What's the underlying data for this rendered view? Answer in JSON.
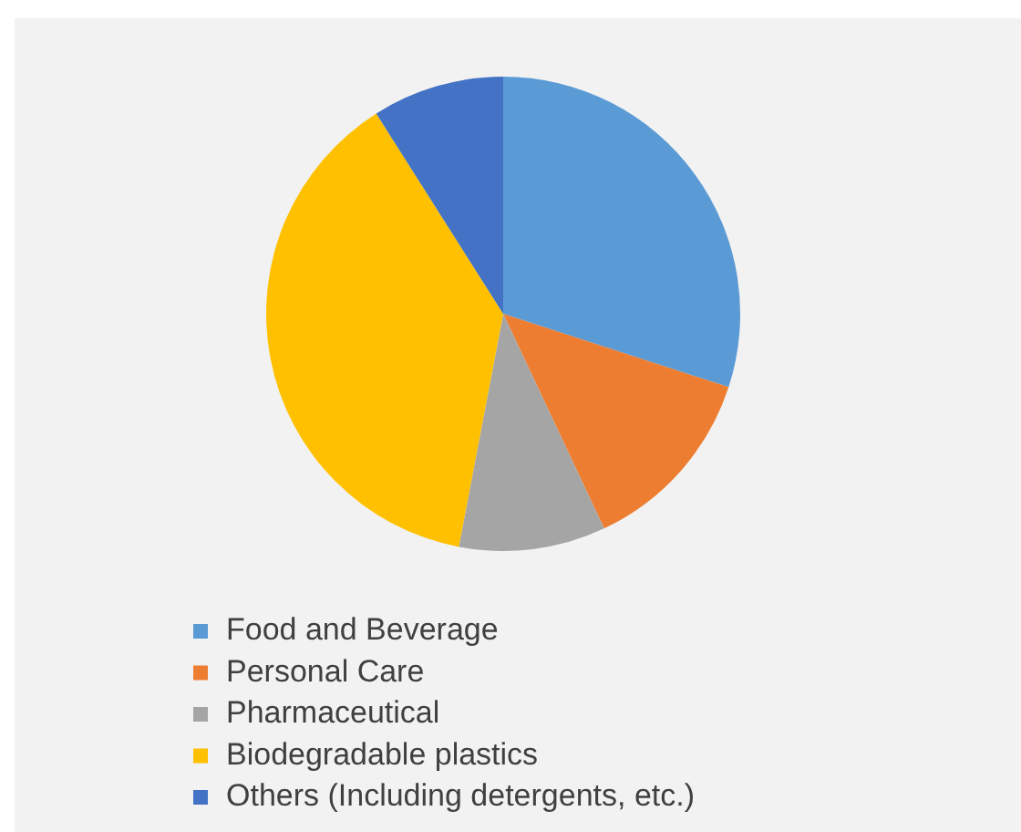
{
  "chart_data": {
    "type": "pie",
    "categories": [
      "Food and Beverage",
      "Personal Care",
      "Pharmaceutical",
      "Biodegradable plastics",
      "Others (Including detergents, etc.)"
    ],
    "values": [
      30,
      13,
      10,
      38,
      9
    ],
    "colors": [
      "#5b9bd5",
      "#ed7d31",
      "#a5a5a5",
      "#ffc000",
      "#4472c4"
    ],
    "legend": "bottom"
  }
}
